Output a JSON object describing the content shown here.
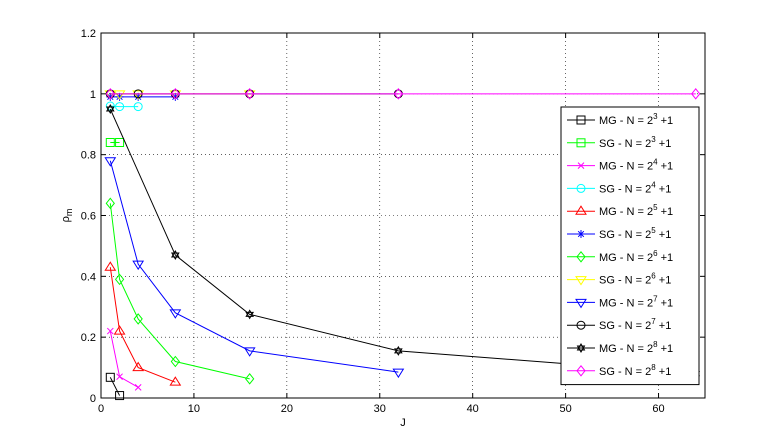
{
  "chart_data": {
    "type": "line",
    "xlabel": "J",
    "ylabel": "ρ",
    "ylabel_sub": "m",
    "xlim": [
      0,
      65
    ],
    "ylim": [
      0,
      1.2
    ],
    "grid": true,
    "grid_style": "dotted",
    "legend_position": "right",
    "xticks": [
      0,
      10,
      20,
      30,
      40,
      50,
      60
    ],
    "yticks": [
      0,
      0.2,
      0.4,
      0.6,
      0.8,
      1,
      1.2
    ],
    "xtick_labels": [
      "0",
      "10",
      "20",
      "30",
      "40",
      "50",
      "60"
    ],
    "ytick_labels": [
      "0",
      "0.2",
      "0.4",
      "0.6",
      "0.8",
      "1",
      "1.2"
    ],
    "series": [
      {
        "name": "MG - N = 2^3 +1",
        "label_prefix": "MG - N = 2",
        "exp": "3",
        "label_suffix": " +1",
        "color": "#000000",
        "marker": "square",
        "x": [
          1,
          2
        ],
        "y": [
          0.068,
          0.008
        ]
      },
      {
        "name": "SG - N = 2^3 +1",
        "label_prefix": "SG - N = 2",
        "exp": "3",
        "label_suffix": " +1",
        "color": "#00ff00",
        "marker": "square",
        "x": [
          1,
          2
        ],
        "y": [
          0.84,
          0.84
        ]
      },
      {
        "name": "MG - N = 2^4 +1",
        "label_prefix": "MG - N = 2",
        "exp": "4",
        "label_suffix": " +1",
        "color": "#ff00ff",
        "marker": "x",
        "x": [
          1,
          2,
          4
        ],
        "y": [
          0.22,
          0.07,
          0.035
        ]
      },
      {
        "name": "SG - N = 2^4 +1",
        "label_prefix": "SG - N = 2",
        "exp": "4",
        "label_suffix": " +1",
        "color": "#00ffff",
        "marker": "circle",
        "x": [
          1,
          2,
          4
        ],
        "y": [
          0.96,
          0.958,
          0.958
        ]
      },
      {
        "name": "MG - N = 2^5 +1",
        "label_prefix": "MG - N = 2",
        "exp": "5",
        "label_suffix": " +1",
        "color": "#ff0000",
        "marker": "triangle-up",
        "x": [
          1,
          2,
          4,
          8
        ],
        "y": [
          0.43,
          0.22,
          0.1,
          0.052
        ]
      },
      {
        "name": "SG - N = 2^5 +1",
        "label_prefix": "SG - N = 2",
        "exp": "5",
        "label_suffix": " +1",
        "color": "#0000ff",
        "marker": "star",
        "x": [
          1,
          2,
          4,
          8
        ],
        "y": [
          0.99,
          0.99,
          0.99,
          0.99
        ]
      },
      {
        "name": "MG - N = 2^6 +1",
        "label_prefix": "MG - N = 2",
        "exp": "6",
        "label_suffix": " +1",
        "color": "#00ff00",
        "marker": "diamond",
        "x": [
          1,
          2,
          4,
          8,
          16
        ],
        "y": [
          0.64,
          0.39,
          0.26,
          0.12,
          0.063
        ]
      },
      {
        "name": "SG - N = 2^6 +1",
        "label_prefix": "SG - N = 2",
        "exp": "6",
        "label_suffix": " +1",
        "color": "#ffff00",
        "marker": "triangle-down",
        "x": [
          1,
          2,
          4,
          8,
          16
        ],
        "y": [
          1.0,
          1.0,
          1.0,
          1.0,
          1.0
        ]
      },
      {
        "name": "MG - N = 2^7 +1",
        "label_prefix": "MG - N = 2",
        "exp": "7",
        "label_suffix": " +1",
        "color": "#0000ff",
        "marker": "triangle-down",
        "x": [
          1,
          4,
          8,
          16,
          32
        ],
        "y": [
          0.78,
          0.44,
          0.28,
          0.155,
          0.085
        ]
      },
      {
        "name": "SG - N = 2^7 +1",
        "label_prefix": "SG - N = 2",
        "exp": "7",
        "label_suffix": " +1",
        "color": "#000000",
        "marker": "circle",
        "x": [
          1,
          4,
          8,
          16,
          32
        ],
        "y": [
          1.0,
          1.0,
          1.0,
          1.0,
          1.0
        ]
      },
      {
        "name": "MG - N = 2^8 +1",
        "label_prefix": "MG - N = 2",
        "exp": "8",
        "label_suffix": " +1",
        "color": "#000000",
        "marker": "hexagram",
        "x": [
          1,
          8,
          16,
          32,
          64
        ],
        "y": [
          0.95,
          0.47,
          0.275,
          0.155,
          0.08
        ]
      },
      {
        "name": "SG - N = 2^8 +1",
        "label_prefix": "SG - N = 2",
        "exp": "8",
        "label_suffix": " +1",
        "color": "#ff00ff",
        "marker": "diamond",
        "x": [
          1,
          8,
          16,
          32,
          64
        ],
        "y": [
          1.0,
          1.0,
          1.0,
          1.0,
          1.0
        ]
      }
    ]
  }
}
